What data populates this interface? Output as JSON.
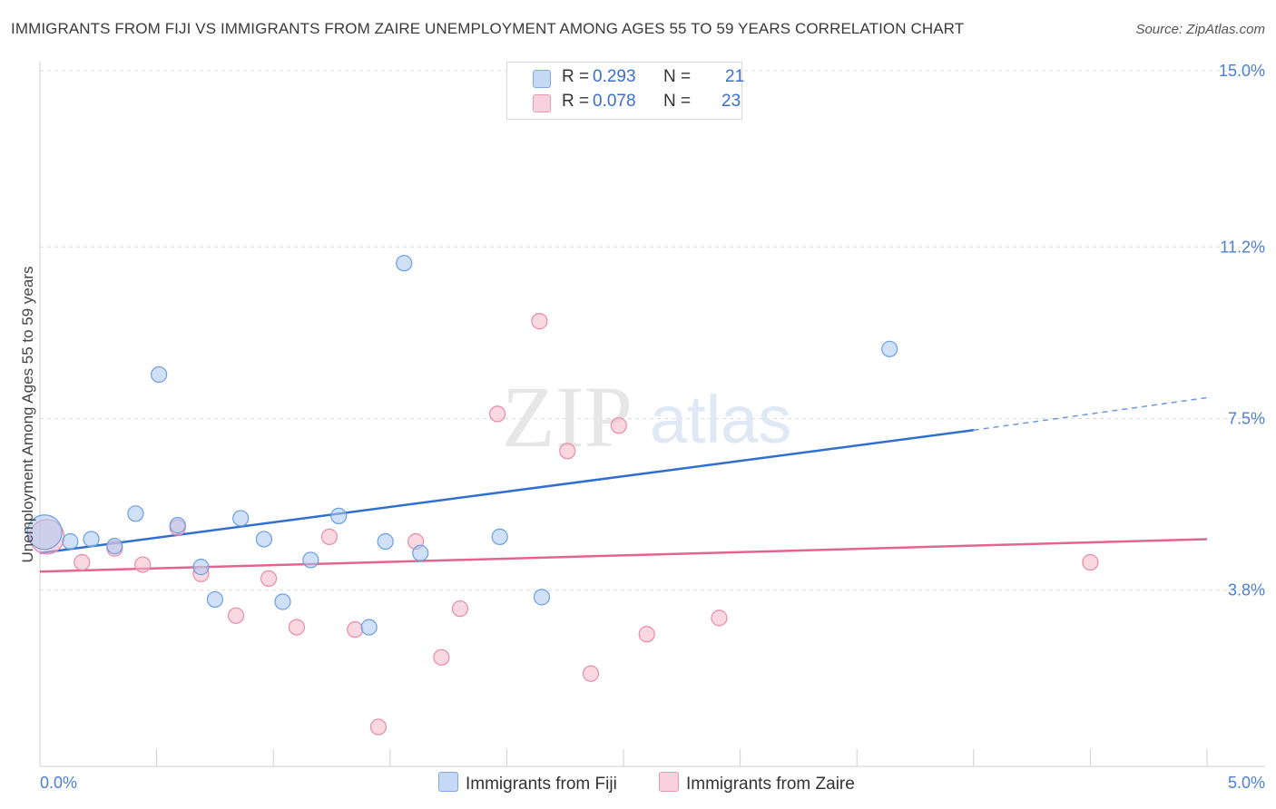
{
  "title": "IMMIGRANTS FROM FIJI VS IMMIGRANTS FROM ZAIRE UNEMPLOYMENT AMONG AGES 55 TO 59 YEARS CORRELATION CHART",
  "source": "Source: ZipAtlas.com",
  "watermark": {
    "zip": "ZIP",
    "atlas": "atlas"
  },
  "legend_top": {
    "rows": [
      {
        "r_label": "R = ",
        "r_value": "0.293",
        "n_label": "N = ",
        "n_value": "21",
        "color": "#a9c8f0"
      },
      {
        "r_label": "R = ",
        "r_value": "0.078",
        "n_label": "N = ",
        "n_value": "23",
        "color": "#f5b8cb"
      }
    ]
  },
  "legend_bottom": [
    {
      "label": "Immigrants from Fiji",
      "color": "#a9c8f0"
    },
    {
      "label": "Immigrants from Zaire",
      "color": "#f5b8cb"
    }
  ],
  "chart_data": {
    "type": "scatter",
    "title": "IMMIGRANTS FROM FIJI VS IMMIGRANTS FROM ZAIRE UNEMPLOYMENT AMONG AGES 55 TO 59 YEARS CORRELATION CHART",
    "xlabel": "",
    "ylabel": "Unemployment Among Ages 55 to 59 years",
    "xlim": [
      0.0,
      5.0
    ],
    "ylim": [
      0.0,
      15.0
    ],
    "x_tick_labels": [
      "0.0%",
      "5.0%"
    ],
    "y_ticks": [
      3.8,
      7.5,
      11.2,
      15.0
    ],
    "y_tick_labels": [
      "3.8%",
      "7.5%",
      "11.2%",
      "15.0%"
    ],
    "grid": true,
    "legend_position": "top-center",
    "series": [
      {
        "name": "Immigrants from Fiji",
        "color": "#a9c8f0",
        "stroke": "#6a9ee0",
        "line_color": "#2f6fd0",
        "trend": {
          "x0": 0.0,
          "y0": 4.6,
          "x1": 4.0,
          "y1": 7.25,
          "dashed_to_x": 5.0,
          "dashed_to_y": 7.95
        },
        "points": [
          {
            "x": 0.02,
            "y": 5.05,
            "big": true
          },
          {
            "x": 0.13,
            "y": 4.85
          },
          {
            "x": 0.22,
            "y": 4.9
          },
          {
            "x": 0.32,
            "y": 4.75
          },
          {
            "x": 0.41,
            "y": 5.45
          },
          {
            "x": 0.51,
            "y": 8.45
          },
          {
            "x": 0.59,
            "y": 5.2
          },
          {
            "x": 0.69,
            "y": 4.3
          },
          {
            "x": 0.75,
            "y": 3.6
          },
          {
            "x": 0.86,
            "y": 5.35
          },
          {
            "x": 0.96,
            "y": 4.9
          },
          {
            "x": 1.04,
            "y": 3.55
          },
          {
            "x": 1.16,
            "y": 4.45
          },
          {
            "x": 1.28,
            "y": 5.4
          },
          {
            "x": 1.41,
            "y": 3.0
          },
          {
            "x": 1.48,
            "y": 4.85
          },
          {
            "x": 1.56,
            "y": 10.85
          },
          {
            "x": 1.63,
            "y": 4.6
          },
          {
            "x": 1.97,
            "y": 4.95
          },
          {
            "x": 2.15,
            "y": 3.65
          },
          {
            "x": 3.64,
            "y": 9.0
          }
        ]
      },
      {
        "name": "Immigrants from Zaire",
        "color": "#f5b8cb",
        "stroke": "#e88aa8",
        "line_color": "#e0668f",
        "trend": {
          "x0": 0.0,
          "y0": 4.2,
          "x1": 5.0,
          "y1": 4.9
        },
        "points": [
          {
            "x": 0.03,
            "y": 4.95,
            "big": true
          },
          {
            "x": 0.18,
            "y": 4.4
          },
          {
            "x": 0.32,
            "y": 4.7
          },
          {
            "x": 0.44,
            "y": 4.35
          },
          {
            "x": 0.59,
            "y": 5.15
          },
          {
            "x": 0.69,
            "y": 4.15
          },
          {
            "x": 0.84,
            "y": 3.25
          },
          {
            "x": 0.98,
            "y": 4.05
          },
          {
            "x": 1.1,
            "y": 3.0
          },
          {
            "x": 1.24,
            "y": 4.95
          },
          {
            "x": 1.35,
            "y": 2.95
          },
          {
            "x": 1.45,
            "y": 0.85
          },
          {
            "x": 1.61,
            "y": 4.85
          },
          {
            "x": 1.72,
            "y": 2.35
          },
          {
            "x": 1.8,
            "y": 3.4
          },
          {
            "x": 1.96,
            "y": 7.6
          },
          {
            "x": 2.14,
            "y": 9.6
          },
          {
            "x": 2.26,
            "y": 6.8
          },
          {
            "x": 2.36,
            "y": 2.0
          },
          {
            "x": 2.48,
            "y": 7.35
          },
          {
            "x": 2.6,
            "y": 2.85
          },
          {
            "x": 2.91,
            "y": 3.2
          },
          {
            "x": 4.5,
            "y": 4.4
          }
        ]
      }
    ]
  }
}
